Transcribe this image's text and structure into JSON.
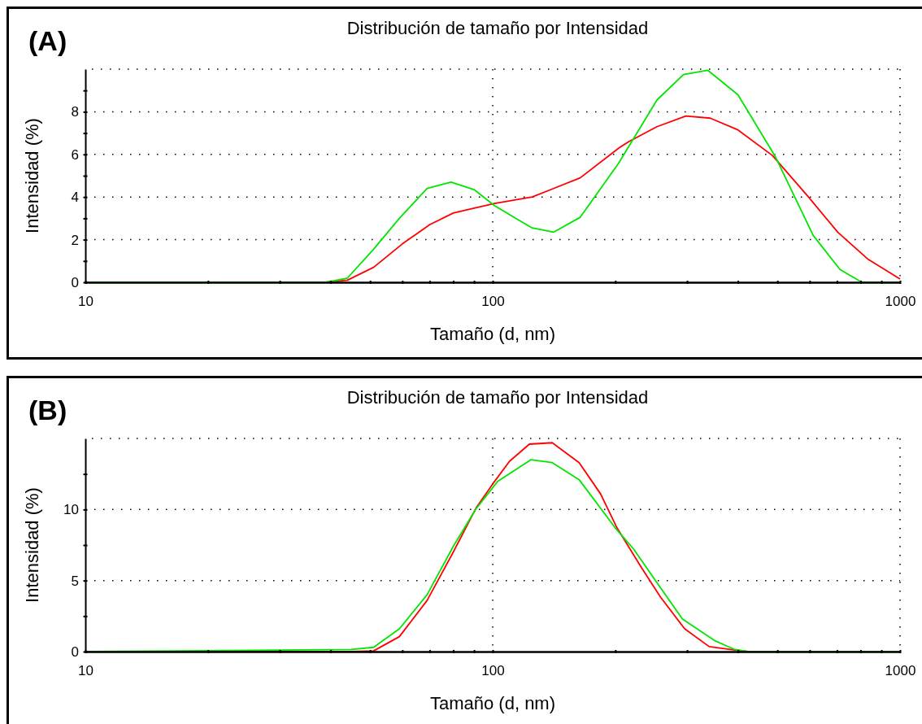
{
  "chart_data": [
    {
      "type": "line",
      "title": "Distribución de tamaño por Intensidad",
      "xlabel": "Tamaño (d, nm)",
      "ylabel": "Intensidad (%)",
      "annotations": [
        "(A)"
      ],
      "log": "x",
      "grid": true,
      "line_style": "solid",
      "marker": "none",
      "xlim": [
        10,
        1000
      ],
      "xticks": [
        10,
        {
          "value": 20,
          "label": null
        },
        {
          "value": 30,
          "label": null
        },
        {
          "value": 40,
          "label": null
        },
        {
          "value": 50,
          "label": null
        },
        {
          "value": 60,
          "label": null
        },
        {
          "value": 70,
          "label": null
        },
        {
          "value": 80,
          "label": null
        },
        {
          "value": 90,
          "label": null
        },
        100,
        {
          "value": 200,
          "label": null
        },
        {
          "value": 300,
          "label": null
        },
        {
          "value": 400,
          "label": null
        },
        {
          "value": 500,
          "label": null
        },
        {
          "value": 600,
          "label": null
        },
        {
          "value": 700,
          "label": null
        },
        {
          "value": 800,
          "label": null
        },
        {
          "value": 900,
          "label": null
        },
        1000
      ],
      "ylim": [
        0,
        10
      ],
      "yticks": [
        0,
        {
          "value": 1,
          "label": null
        },
        2,
        {
          "value": 3,
          "label": null
        },
        4,
        {
          "value": 5,
          "label": null
        },
        6,
        {
          "value": 7,
          "label": null
        },
        8,
        {
          "value": 9,
          "label": null
        }
      ],
      "series": [
        {
          "color": "#ff0000",
          "x": [
            10,
            39,
            44,
            51,
            60,
            70,
            80,
            101,
            125,
            141,
            164,
            204,
            216,
            253,
            298,
            342,
            400,
            486,
            593,
            703,
            832,
            1000
          ],
          "values": [
            0,
            0,
            0.1,
            0.7,
            1.8,
            2.7,
            3.25,
            3.7,
            4.0,
            4.4,
            4.9,
            6.3,
            6.6,
            7.3,
            7.8,
            7.7,
            7.15,
            5.95,
            4.05,
            2.35,
            1.1,
            0.15
          ]
        },
        {
          "color": "#00e600",
          "x": [
            10,
            39,
            44,
            51,
            59,
            69,
            79,
            90,
            101,
            114,
            125,
            141,
            164,
            204,
            253,
            294,
            337,
            400,
            494,
            612,
            712,
            806,
            1000
          ],
          "values": [
            0,
            0,
            0.2,
            1.55,
            3.0,
            4.4,
            4.7,
            4.35,
            3.6,
            3.0,
            2.55,
            2.35,
            3.05,
            5.6,
            8.55,
            9.75,
            9.95,
            8.8,
            5.9,
            2.2,
            0.6,
            0,
            0
          ]
        }
      ]
    },
    {
      "type": "line",
      "title": "Distribución de tamaño por Intensidad",
      "xlabel": "Tamaño (d, nm)",
      "ylabel": "Intensidad (%)",
      "annotations": [
        "(B)"
      ],
      "log": "x",
      "grid": true,
      "line_style": "solid",
      "marker": "none",
      "xlim": [
        10,
        1000
      ],
      "xticks": [
        10,
        {
          "value": 20,
          "label": null
        },
        {
          "value": 30,
          "label": null
        },
        {
          "value": 40,
          "label": null
        },
        {
          "value": 50,
          "label": null
        },
        {
          "value": 60,
          "label": null
        },
        {
          "value": 70,
          "label": null
        },
        {
          "value": 80,
          "label": null
        },
        {
          "value": 90,
          "label": null
        },
        100,
        {
          "value": 200,
          "label": null
        },
        {
          "value": 300,
          "label": null
        },
        {
          "value": 400,
          "label": null
        },
        {
          "value": 500,
          "label": null
        },
        {
          "value": 600,
          "label": null
        },
        {
          "value": 700,
          "label": null
        },
        {
          "value": 800,
          "label": null
        },
        {
          "value": 900,
          "label": null
        },
        1000
      ],
      "ylim": [
        0,
        15
      ],
      "yticks": [
        0,
        {
          "value": 2.5,
          "label": null
        },
        5,
        {
          "value": 7.5,
          "label": null
        },
        {
          "value": 10,
          "label": "10"
        },
        {
          "value": 12.5,
          "label": null
        }
      ],
      "series": [
        {
          "color": "#ff0000",
          "x": [
            10,
            45,
            51,
            59,
            69,
            80,
            91,
            100,
            110,
            123,
            140,
            163,
            184,
            202,
            232,
            258,
            296,
            340,
            380,
            423,
            1000
          ],
          "values": [
            0,
            0,
            0.05,
            1.05,
            3.6,
            7.0,
            10.1,
            11.8,
            13.4,
            14.6,
            14.7,
            13.3,
            11.1,
            8.7,
            5.9,
            3.85,
            1.6,
            0.35,
            0.17,
            0,
            0
          ]
        },
        {
          "color": "#00e600",
          "x": [
            10,
            45,
            51,
            59,
            69,
            80,
            91,
            103,
            124,
            140,
            163,
            200,
            222,
            251,
            292,
            352,
            391,
            423,
            1000
          ],
          "values": [
            0,
            0.15,
            0.3,
            1.6,
            4.0,
            7.4,
            10.05,
            12.0,
            13.5,
            13.3,
            12.1,
            8.7,
            7.2,
            5.0,
            2.3,
            0.75,
            0.17,
            0,
            0
          ]
        }
      ]
    }
  ]
}
